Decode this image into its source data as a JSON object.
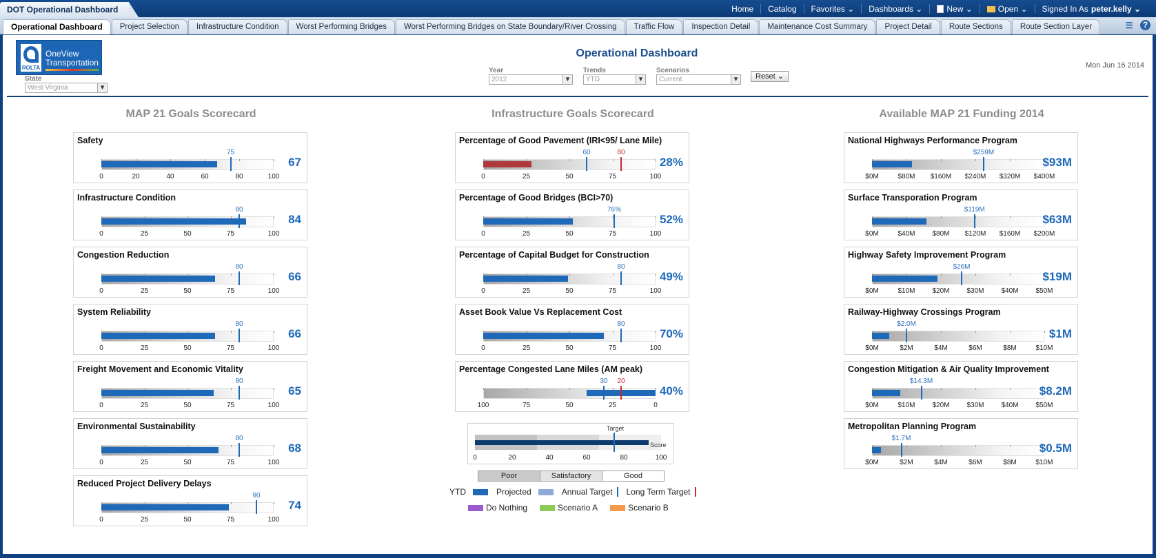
{
  "app": {
    "title": "DOT Operational Dashboard",
    "nav": [
      "Home",
      "Catalog",
      "Favorites ⌄",
      "Dashboards ⌄",
      "New ⌄",
      "Open ⌄"
    ],
    "signed_in_label": "Signed In As",
    "user": "peter.kelly ⌄"
  },
  "tabs": [
    "Operational Dashboard",
    "Project Selection",
    "Infrastructure Condition",
    "Worst Performing Bridges",
    "Worst Performing Bridges on State Boundary/River Crossing",
    "Traffic Flow",
    "Inspection Detail",
    "Maintenance Cost Summary",
    "Project Detail",
    "Route Sections",
    "Route Section Layer"
  ],
  "logo": {
    "brand": "ROLTA",
    "line1": "OneView",
    "line2": "Transportation"
  },
  "page_title": "Operational Dashboard",
  "date": "Mon Jun 16 2014",
  "filters": {
    "state": {
      "label": "State",
      "value": "West Virginia"
    },
    "year": {
      "label": "Year",
      "value": "2012"
    },
    "trends": {
      "label": "Trends",
      "value": "YTD"
    },
    "scenarios": {
      "label": "Scenarios",
      "value": "Current"
    },
    "reset_label": "Reset ⌄"
  },
  "columns": {
    "map21": "MAP 21 Goals Scorecard",
    "infra": "Infrastructure Goals Scorecard",
    "funding": "Available MAP 21 Funding 2014"
  },
  "chart_data": [
    {
      "type": "bar",
      "group": "MAP 21 Goals Scorecard",
      "title": "Safety",
      "value": 67,
      "value_label": "67",
      "target": 75,
      "target_label": "75",
      "ticks": [
        "0",
        "20",
        "40",
        "60",
        "80",
        "100"
      ],
      "xlim": [
        0,
        100
      ]
    },
    {
      "type": "bar",
      "group": "MAP 21 Goals Scorecard",
      "title": "Infrastructure Condition",
      "value": 84,
      "value_label": "84",
      "target": 80,
      "target_label": "80",
      "ticks": [
        "0",
        "25",
        "50",
        "75",
        "100"
      ],
      "xlim": [
        0,
        100
      ]
    },
    {
      "type": "bar",
      "group": "MAP 21 Goals Scorecard",
      "title": "Congestion Reduction",
      "value": 66,
      "value_label": "66",
      "target": 80,
      "target_label": "80",
      "ticks": [
        "0",
        "25",
        "50",
        "75",
        "100"
      ],
      "xlim": [
        0,
        100
      ]
    },
    {
      "type": "bar",
      "group": "MAP 21 Goals Scorecard",
      "title": "System Reliability",
      "value": 66,
      "value_label": "66",
      "target": 80,
      "target_label": "80",
      "ticks": [
        "0",
        "25",
        "50",
        "75",
        "100"
      ],
      "xlim": [
        0,
        100
      ]
    },
    {
      "type": "bar",
      "group": "MAP 21 Goals Scorecard",
      "title": "Freight Movement and Economic Vitality",
      "value": 65,
      "value_label": "65",
      "target": 80,
      "target_label": "80",
      "ticks": [
        "0",
        "25",
        "50",
        "75",
        "100"
      ],
      "xlim": [
        0,
        100
      ]
    },
    {
      "type": "bar",
      "group": "MAP 21 Goals Scorecard",
      "title": "Environmental Sustainability",
      "value": 68,
      "value_label": "68",
      "target": 80,
      "target_label": "80",
      "ticks": [
        "0",
        "25",
        "50",
        "75",
        "100"
      ],
      "xlim": [
        0,
        100
      ]
    },
    {
      "type": "bar",
      "group": "MAP 21 Goals Scorecard",
      "title": "Reduced Project Delivery Delays",
      "value": 74,
      "value_label": "74",
      "target": 90,
      "target_label": "90",
      "ticks": [
        "0",
        "25",
        "50",
        "75",
        "100"
      ],
      "xlim": [
        0,
        100
      ]
    },
    {
      "type": "bar",
      "group": "Infrastructure Goals Scorecard",
      "title": "Percentage of Good Pavement (IRI<95/ Lane Mile)",
      "value": 28,
      "value_label": "28%",
      "bar_color": "#b0383a",
      "target": 60,
      "target_label": "60",
      "long_term_target": 80,
      "long_term_label": "80",
      "ticks": [
        "0",
        "25",
        "50",
        "75",
        "100"
      ],
      "xlim": [
        0,
        100
      ]
    },
    {
      "type": "bar",
      "group": "Infrastructure Goals Scorecard",
      "title": "Percentage of Good Bridges (BCI>70)",
      "value": 52,
      "value_label": "52%",
      "target": 76,
      "target_label": "76%",
      "ticks": [
        "0",
        "25",
        "50",
        "75",
        "100"
      ],
      "xlim": [
        0,
        100
      ]
    },
    {
      "type": "bar",
      "group": "Infrastructure Goals Scorecard",
      "title": "Percentage of Capital Budget for Construction",
      "value": 49,
      "value_label": "49%",
      "target": 80,
      "target_label": "80",
      "ticks": [
        "0",
        "25",
        "50",
        "75",
        "100"
      ],
      "xlim": [
        0,
        100
      ]
    },
    {
      "type": "bar",
      "group": "Infrastructure Goals Scorecard",
      "title": "Asset Book Value Vs Replacement Cost",
      "value": 70,
      "value_label": "70%",
      "target": 80,
      "target_label": "80",
      "ticks": [
        "0",
        "25",
        "50",
        "75",
        "100"
      ],
      "xlim": [
        0,
        100
      ]
    },
    {
      "type": "bar",
      "group": "Infrastructure Goals Scorecard",
      "title": "Percentage Congested Lane Miles (AM peak)",
      "value": 40,
      "value_label": "40%",
      "reversed": true,
      "target": 30,
      "target_label": "30",
      "long_term_target": 20,
      "long_term_label": "20",
      "ticks": [
        "100",
        "75",
        "50",
        "25",
        "0"
      ],
      "xlim": [
        100,
        0
      ]
    },
    {
      "type": "bar",
      "group": "Available MAP 21 Funding 2014",
      "title": "National Highways Performance Program",
      "value": 93,
      "value_label": "$93M",
      "target": 259,
      "target_label": "$259M",
      "ticks": [
        "$0M",
        "$80M",
        "$160M",
        "$240M",
        "$320M",
        "$400M"
      ],
      "xlim": [
        0,
        400
      ]
    },
    {
      "type": "bar",
      "group": "Available MAP 21 Funding 2014",
      "title": "Surface Transporation Program",
      "value": 63,
      "value_label": "$63M",
      "target": 119,
      "target_label": "$119M",
      "ticks": [
        "$0M",
        "$40M",
        "$80M",
        "$120M",
        "$160M",
        "$200M"
      ],
      "xlim": [
        0,
        200
      ]
    },
    {
      "type": "bar",
      "group": "Available MAP 21 Funding 2014",
      "title": "Highway Safety Improvement Program",
      "value": 19,
      "value_label": "$19M",
      "target": 26,
      "target_label": "$26M",
      "ticks": [
        "$0M",
        "$10M",
        "$20M",
        "$30M",
        "$40M",
        "$50M"
      ],
      "xlim": [
        0,
        50
      ]
    },
    {
      "type": "bar",
      "group": "Available MAP 21 Funding 2014",
      "title": "Railway-Highway Crossings Program",
      "value": 1,
      "value_label": "$1M",
      "target": 2.0,
      "target_label": "$2.0M",
      "ticks": [
        "$0M",
        "$2M",
        "$4M",
        "$6M",
        "$8M",
        "$10M"
      ],
      "xlim": [
        0,
        10
      ]
    },
    {
      "type": "bar",
      "group": "Available MAP 21 Funding 2014",
      "title": "Congestion Mitigation & Air Quality Improvement",
      "value": 8.2,
      "value_label": "$8.2M",
      "target": 14.3,
      "target_label": "$14.3M",
      "ticks": [
        "$0M",
        "$10M",
        "$20M",
        "$30M",
        "$40M",
        "$50M"
      ],
      "xlim": [
        0,
        50
      ]
    },
    {
      "type": "bar",
      "group": "Available MAP 21 Funding 2014",
      "title": "Metropolitan Planning Program",
      "value": 0.5,
      "value_label": "$0.5M",
      "target": 1.7,
      "target_label": "$1.7M",
      "ticks": [
        "$0M",
        "$2M",
        "$4M",
        "$6M",
        "$8M",
        "$10M"
      ],
      "xlim": [
        0,
        10
      ]
    }
  ],
  "legend": {
    "target_label": "Target",
    "score_label": "Score",
    "ticks": [
      "0",
      "20",
      "40",
      "60",
      "80",
      "100"
    ],
    "bands": [
      "Poor",
      "Satisfactory",
      "Good"
    ],
    "ytd_label": "YTD",
    "items": [
      "Projected",
      "Annual Target",
      "Long Term Target"
    ],
    "scenarios": [
      "Do Nothing",
      "Scenario A",
      "Scenario B"
    ],
    "colors": {
      "ytd": "#1f69b9",
      "projected": "#8eaadb",
      "annual": "#1f69b9",
      "long_term": "#c9282d",
      "do_nothing": "#9b59c9",
      "scenario_a": "#8bcc55",
      "scenario_b": "#f59a4b"
    }
  }
}
